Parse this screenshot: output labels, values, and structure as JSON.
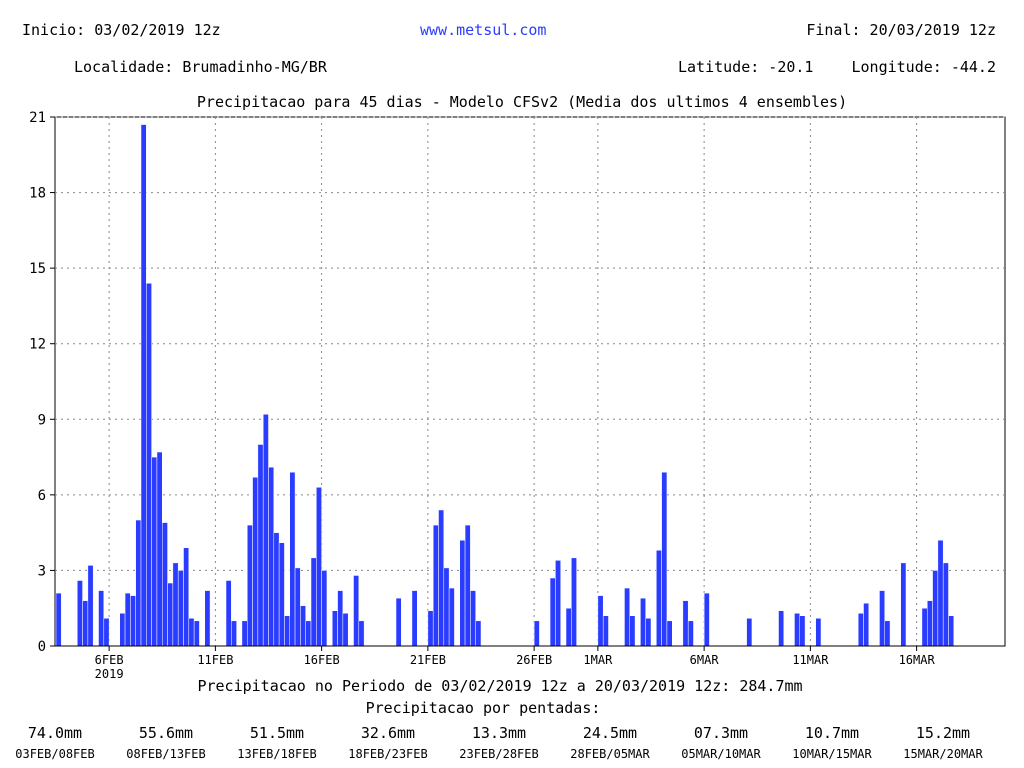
{
  "header": {
    "inicio": "Inicio: 03/02/2019 12z",
    "site": "www.metsul.com",
    "final": "Final: 20/03/2019 12z",
    "localidade": "Localidade: Brumadinho-MG/BR",
    "latitude": "Latitude: -20.1",
    "longitude": "Longitude: -44.2",
    "title": "Precipitacao para 45 dias - Modelo CFSv2 (Media dos ultimos 4 ensembles)"
  },
  "chart_data": {
    "type": "bar",
    "x_unit": "days since 03FEB 12z",
    "ylim": [
      0,
      21
    ],
    "yticks": [
      0,
      3,
      6,
      9,
      12,
      15,
      18,
      21
    ],
    "grid": true,
    "bar_color": "#2a3cff",
    "xticks": [
      {
        "day": 2.5,
        "label": "6FEB",
        "sub": "2019"
      },
      {
        "day": 7.5,
        "label": "11FEB"
      },
      {
        "day": 12.5,
        "label": "16FEB"
      },
      {
        "day": 17.5,
        "label": "21FEB"
      },
      {
        "day": 22.5,
        "label": "26FEB"
      },
      {
        "day": 25.5,
        "label": "1MAR"
      },
      {
        "day": 30.5,
        "label": "6MAR"
      },
      {
        "day": 35.5,
        "label": "11MAR"
      },
      {
        "day": 40.5,
        "label": "16MAR"
      }
    ],
    "bars": [
      {
        "t": 0.0,
        "v": 2.1
      },
      {
        "t": 1.0,
        "v": 2.6
      },
      {
        "t": 1.25,
        "v": 1.8
      },
      {
        "t": 1.5,
        "v": 3.2
      },
      {
        "t": 2.0,
        "v": 2.2
      },
      {
        "t": 2.25,
        "v": 1.1
      },
      {
        "t": 3.0,
        "v": 1.3
      },
      {
        "t": 3.25,
        "v": 2.1
      },
      {
        "t": 3.5,
        "v": 2.0
      },
      {
        "t": 3.75,
        "v": 5.0
      },
      {
        "t": 4.0,
        "v": 20.7
      },
      {
        "t": 4.25,
        "v": 14.4
      },
      {
        "t": 4.5,
        "v": 7.5
      },
      {
        "t": 4.75,
        "v": 7.7
      },
      {
        "t": 5.0,
        "v": 4.9
      },
      {
        "t": 5.25,
        "v": 2.5
      },
      {
        "t": 5.5,
        "v": 3.3
      },
      {
        "t": 5.75,
        "v": 3.0
      },
      {
        "t": 6.0,
        "v": 3.9
      },
      {
        "t": 6.25,
        "v": 1.1
      },
      {
        "t": 6.5,
        "v": 1.0
      },
      {
        "t": 7.0,
        "v": 2.2
      },
      {
        "t": 8.0,
        "v": 2.6
      },
      {
        "t": 8.25,
        "v": 1.0
      },
      {
        "t": 8.75,
        "v": 1.0
      },
      {
        "t": 9.0,
        "v": 4.8
      },
      {
        "t": 9.25,
        "v": 6.7
      },
      {
        "t": 9.5,
        "v": 8.0
      },
      {
        "t": 9.75,
        "v": 9.2
      },
      {
        "t": 10.0,
        "v": 7.1
      },
      {
        "t": 10.25,
        "v": 4.5
      },
      {
        "t": 10.5,
        "v": 4.1
      },
      {
        "t": 10.75,
        "v": 1.2
      },
      {
        "t": 11.0,
        "v": 6.9
      },
      {
        "t": 11.25,
        "v": 3.1
      },
      {
        "t": 11.5,
        "v": 1.6
      },
      {
        "t": 11.75,
        "v": 1.0
      },
      {
        "t": 12.0,
        "v": 3.5
      },
      {
        "t": 12.25,
        "v": 6.3
      },
      {
        "t": 12.5,
        "v": 3.0
      },
      {
        "t": 13.0,
        "v": 1.4
      },
      {
        "t": 13.25,
        "v": 2.2
      },
      {
        "t": 13.5,
        "v": 1.3
      },
      {
        "t": 14.0,
        "v": 2.8
      },
      {
        "t": 14.25,
        "v": 1.0
      },
      {
        "t": 16.0,
        "v": 1.9
      },
      {
        "t": 16.75,
        "v": 2.2
      },
      {
        "t": 17.5,
        "v": 1.4
      },
      {
        "t": 17.75,
        "v": 4.8
      },
      {
        "t": 18.0,
        "v": 5.4
      },
      {
        "t": 18.25,
        "v": 3.1
      },
      {
        "t": 18.5,
        "v": 2.3
      },
      {
        "t": 19.0,
        "v": 4.2
      },
      {
        "t": 19.25,
        "v": 4.8
      },
      {
        "t": 19.5,
        "v": 2.2
      },
      {
        "t": 19.75,
        "v": 1.0
      },
      {
        "t": 22.5,
        "v": 1.0
      },
      {
        "t": 23.25,
        "v": 2.7
      },
      {
        "t": 23.5,
        "v": 3.4
      },
      {
        "t": 24.0,
        "v": 1.5
      },
      {
        "t": 24.25,
        "v": 3.5
      },
      {
        "t": 25.5,
        "v": 2.0
      },
      {
        "t": 25.75,
        "v": 1.2
      },
      {
        "t": 26.75,
        "v": 2.3
      },
      {
        "t": 27.0,
        "v": 1.2
      },
      {
        "t": 27.5,
        "v": 1.9
      },
      {
        "t": 27.75,
        "v": 1.1
      },
      {
        "t": 28.25,
        "v": 3.8
      },
      {
        "t": 28.5,
        "v": 6.9
      },
      {
        "t": 28.75,
        "v": 1.0
      },
      {
        "t": 29.5,
        "v": 1.8
      },
      {
        "t": 29.75,
        "v": 1.0
      },
      {
        "t": 30.5,
        "v": 2.1
      },
      {
        "t": 32.5,
        "v": 1.1
      },
      {
        "t": 34.0,
        "v": 1.4
      },
      {
        "t": 34.75,
        "v": 1.3
      },
      {
        "t": 35.0,
        "v": 1.2
      },
      {
        "t": 35.75,
        "v": 1.1
      },
      {
        "t": 37.75,
        "v": 1.3
      },
      {
        "t": 38.0,
        "v": 1.7
      },
      {
        "t": 38.75,
        "v": 2.2
      },
      {
        "t": 39.0,
        "v": 1.0
      },
      {
        "t": 39.75,
        "v": 3.3
      },
      {
        "t": 40.75,
        "v": 1.5
      },
      {
        "t": 41.0,
        "v": 1.8
      },
      {
        "t": 41.25,
        "v": 3.0
      },
      {
        "t": 41.5,
        "v": 4.2
      },
      {
        "t": 41.75,
        "v": 3.3
      },
      {
        "t": 42.0,
        "v": 1.2
      }
    ]
  },
  "total": "Precipitacao no Periodo de 03/02/2019 12z a 20/03/2019 12z: 284.7mm",
  "pentads_title": "Precipitacao por pentadas:",
  "pentads": [
    {
      "mm": "74.0mm",
      "period": "03FEB/08FEB"
    },
    {
      "mm": "55.6mm",
      "period": "08FEB/13FEB"
    },
    {
      "mm": "51.5mm",
      "period": "13FEB/18FEB"
    },
    {
      "mm": "32.6mm",
      "period": "18FEB/23FEB"
    },
    {
      "mm": "13.3mm",
      "period": "23FEB/28FEB"
    },
    {
      "mm": "24.5mm",
      "period": "28FEB/05MAR"
    },
    {
      "mm": "07.3mm",
      "period": "05MAR/10MAR"
    },
    {
      "mm": "10.7mm",
      "period": "10MAR/15MAR"
    },
    {
      "mm": "15.2mm",
      "period": "15MAR/20MAR"
    }
  ]
}
